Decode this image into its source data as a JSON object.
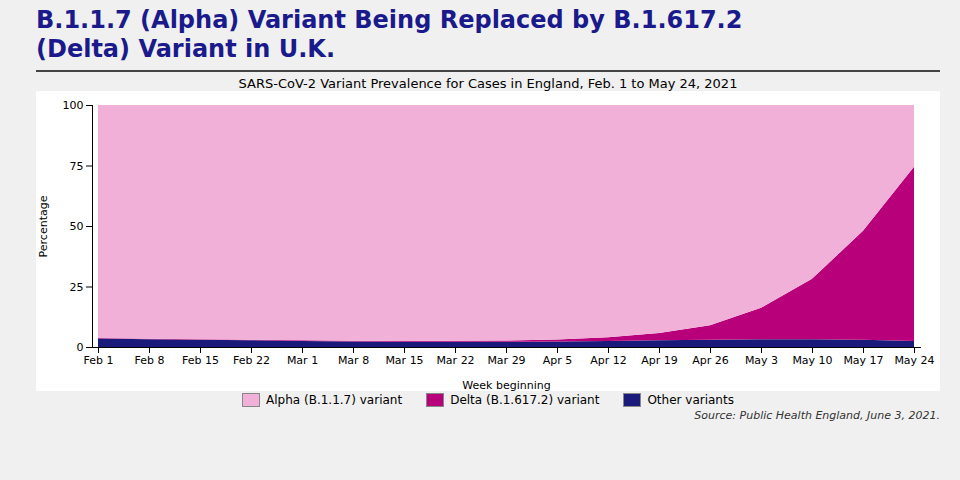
{
  "chart_data": {
    "type": "area",
    "stacked": true,
    "title": "B.1.1.7 (Alpha) Variant Being Replaced by B.1.617.2 (Delta) Variant in U.K.",
    "subtitle": "SARS-CoV-2 Variant Prevalence for Cases in England, Feb. 1 to May 24, 2021",
    "xlabel": "Week beginning",
    "ylabel": "Percentage",
    "source": "Source: Public Health England, June 3, 2021.",
    "categories": [
      "Feb 1",
      "Feb 8",
      "Feb 15",
      "Feb 22",
      "Mar 1",
      "Mar 8",
      "Mar 15",
      "Mar 22",
      "Mar 29",
      "Apr 5",
      "Apr 12",
      "Apr 19",
      "Apr 26",
      "May 3",
      "May 10",
      "May 17",
      "May 24"
    ],
    "series": [
      {
        "name": "Other variants",
        "color": "#1a1a7a",
        "values": [
          3.5,
          3.2,
          3.0,
          2.8,
          2.5,
          2.3,
          2.2,
          2.2,
          2.2,
          2.3,
          2.5,
          2.8,
          3.0,
          3.2,
          3.2,
          3.0,
          2.5
        ]
      },
      {
        "name": "Delta (B.1.617.2) variant",
        "color": "#b8007a",
        "values": [
          0.2,
          0.2,
          0.2,
          0.2,
          0.3,
          0.3,
          0.3,
          0.4,
          0.5,
          0.8,
          1.5,
          3.0,
          6.0,
          13.0,
          25.0,
          45.0,
          72.0
        ]
      },
      {
        "name": "Alpha (B.1.1.7) variant",
        "color": "#f0b0d8",
        "values": [
          96.3,
          96.6,
          96.8,
          97.0,
          97.2,
          97.4,
          97.5,
          97.4,
          97.3,
          96.9,
          96.0,
          94.2,
          91.0,
          83.8,
          71.8,
          52.0,
          25.5
        ]
      }
    ],
    "ylim": [
      0,
      100
    ],
    "yticks": [
      0,
      25,
      50,
      75,
      100
    ],
    "grid": false,
    "legend": "bottom"
  }
}
